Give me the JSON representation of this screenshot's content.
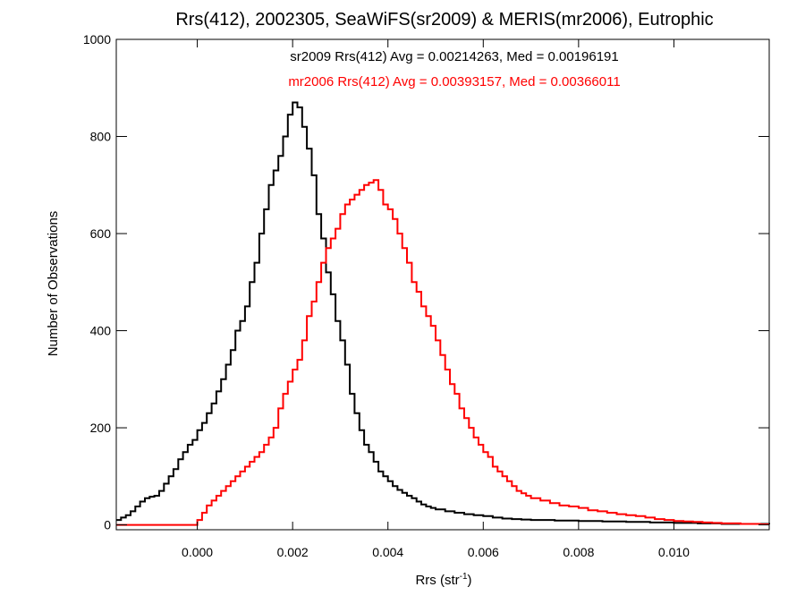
{
  "chart_data": {
    "type": "line",
    "step": true,
    "title": "Rrs(412), 2002305, SeaWiFS(sr2009) & MERIS(mr2006), Eutrophic",
    "xlabel": {
      "base": "Rrs (str",
      "sup": "-1",
      "suffix": ")"
    },
    "ylabel": "Number of Observations",
    "xlim": [
      -0.0017,
      0.012
    ],
    "ylim": [
      -10,
      1000
    ],
    "x_ticks": [
      0.0,
      0.002,
      0.004,
      0.006,
      0.008,
      0.01
    ],
    "x_tick_labels": [
      "0.000",
      "0.002",
      "0.004",
      "0.006",
      "0.008",
      "0.010"
    ],
    "y_ticks": [
      0,
      200,
      400,
      600,
      800,
      1000
    ],
    "y_tick_labels": [
      "0",
      "200",
      "400",
      "600",
      "800",
      "1000"
    ],
    "annotations": [
      {
        "text": "sr2009 Rrs(412) Avg = 0.00214263, Med = 0.00196191",
        "color": "#000000"
      },
      {
        "text": "mr2006 Rrs(412) Avg = 0.00393157, Med = 0.00366011",
        "color": "#ff0000"
      }
    ],
    "series": [
      {
        "color": "#000000",
        "x": [
          -0.0017,
          -0.0016,
          -0.0015,
          -0.0014,
          -0.0013,
          -0.0012,
          -0.0011,
          -0.001,
          -0.0009,
          -0.0008,
          -0.0007,
          -0.0006,
          -0.0005,
          -0.0004,
          -0.0003,
          -0.0002,
          -0.0001,
          0.0,
          0.0001,
          0.0002,
          0.0003,
          0.0004,
          0.0005,
          0.0006,
          0.0007,
          0.0008,
          0.0009,
          0.001,
          0.0011,
          0.0012,
          0.0013,
          0.0014,
          0.0015,
          0.0016,
          0.0017,
          0.0018,
          0.0019,
          0.002,
          0.0021,
          0.0022,
          0.0023,
          0.0024,
          0.0025,
          0.0026,
          0.0027,
          0.0028,
          0.0029,
          0.003,
          0.0031,
          0.0032,
          0.0033,
          0.0034,
          0.0035,
          0.0036,
          0.0037,
          0.0038,
          0.0039,
          0.004,
          0.0041,
          0.0042,
          0.0043,
          0.0044,
          0.0045,
          0.0046,
          0.0047,
          0.0048,
          0.0049,
          0.005,
          0.0052,
          0.0054,
          0.0056,
          0.0058,
          0.006,
          0.0062,
          0.0064,
          0.0066,
          0.0068,
          0.007,
          0.0075,
          0.008,
          0.0085,
          0.009,
          0.0095,
          0.01,
          0.0105,
          0.011,
          0.0115,
          0.012
        ],
        "y": [
          10,
          15,
          20,
          28,
          38,
          48,
          55,
          58,
          60,
          70,
          85,
          100,
          115,
          135,
          150,
          165,
          175,
          195,
          210,
          230,
          250,
          275,
          300,
          330,
          360,
          400,
          420,
          450,
          500,
          540,
          600,
          650,
          700,
          730,
          760,
          800,
          845,
          870,
          860,
          820,
          775,
          720,
          640,
          590,
          520,
          475,
          420,
          380,
          330,
          270,
          230,
          195,
          165,
          150,
          130,
          110,
          100,
          90,
          80,
          72,
          66,
          60,
          55,
          48,
          42,
          38,
          35,
          32,
          28,
          25,
          22,
          20,
          18,
          15,
          13,
          12,
          11,
          10,
          9,
          8,
          7,
          6,
          5,
          4,
          3,
          2,
          2,
          1
        ]
      },
      {
        "color": "#ff0000",
        "x": [
          -0.0017,
          -0.0005,
          -0.0001,
          0.0,
          0.0001,
          0.0002,
          0.0003,
          0.0004,
          0.0005,
          0.0006,
          0.0007,
          0.0008,
          0.0009,
          0.001,
          0.0011,
          0.0012,
          0.0013,
          0.0014,
          0.0015,
          0.0016,
          0.0017,
          0.0018,
          0.0019,
          0.002,
          0.0021,
          0.0022,
          0.0023,
          0.0024,
          0.0025,
          0.0026,
          0.0027,
          0.0028,
          0.0029,
          0.003,
          0.0031,
          0.0032,
          0.0033,
          0.0034,
          0.0035,
          0.0036,
          0.0037,
          0.0038,
          0.0039,
          0.004,
          0.0041,
          0.0042,
          0.0043,
          0.0044,
          0.0045,
          0.0046,
          0.0047,
          0.0048,
          0.0049,
          0.005,
          0.0051,
          0.0052,
          0.0053,
          0.0054,
          0.0055,
          0.0056,
          0.0057,
          0.0058,
          0.0059,
          0.006,
          0.0061,
          0.0062,
          0.0063,
          0.0064,
          0.0065,
          0.0066,
          0.0067,
          0.0068,
          0.0069,
          0.007,
          0.0072,
          0.0074,
          0.0076,
          0.0078,
          0.008,
          0.0082,
          0.0084,
          0.0086,
          0.0088,
          0.009,
          0.0092,
          0.0094,
          0.0096,
          0.0098,
          0.01,
          0.0102,
          0.0104,
          0.0106,
          0.0108,
          0.011,
          0.0112,
          0.0114,
          0.0116,
          0.0118,
          0.012
        ],
        "y": [
          0,
          0,
          0,
          10,
          25,
          40,
          50,
          60,
          70,
          80,
          90,
          100,
          110,
          120,
          130,
          140,
          150,
          165,
          180,
          200,
          240,
          270,
          295,
          320,
          340,
          380,
          430,
          460,
          500,
          540,
          570,
          590,
          610,
          640,
          660,
          670,
          680,
          690,
          700,
          705,
          710,
          690,
          660,
          650,
          630,
          600,
          570,
          540,
          500,
          480,
          450,
          430,
          410,
          380,
          350,
          320,
          290,
          270,
          240,
          220,
          200,
          180,
          165,
          150,
          140,
          120,
          110,
          100,
          90,
          80,
          70,
          65,
          60,
          55,
          50,
          45,
          40,
          38,
          35,
          30,
          28,
          25,
          22,
          20,
          18,
          15,
          12,
          10,
          8,
          7,
          6,
          5,
          4,
          3,
          3,
          2,
          2,
          1,
          1
        ]
      }
    ]
  }
}
